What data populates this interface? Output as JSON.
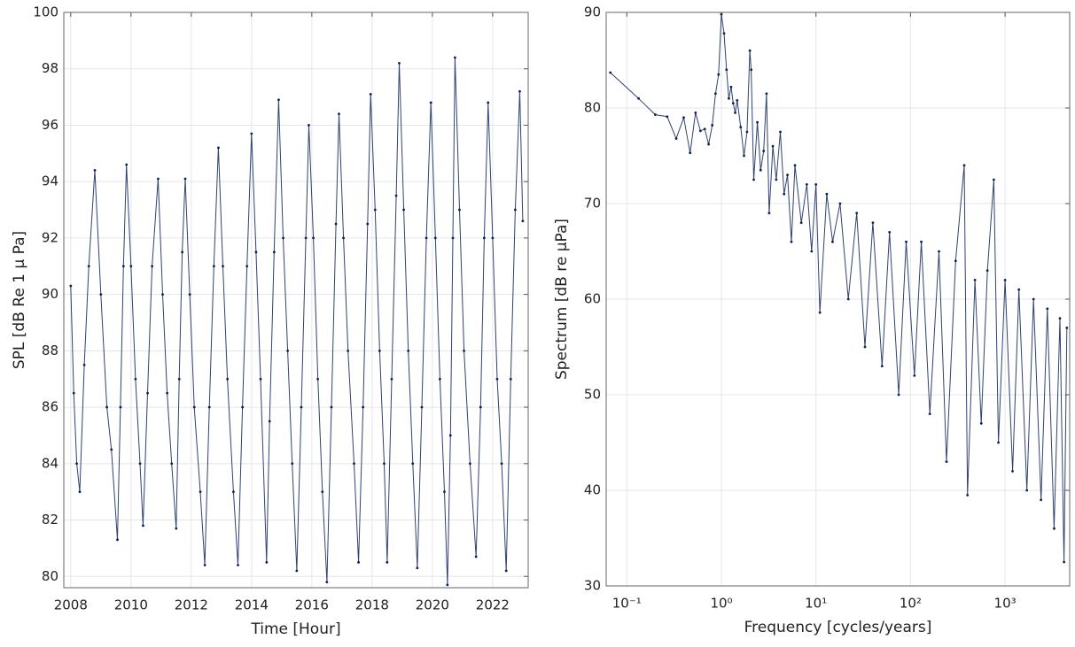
{
  "chart_data": [
    {
      "type": "line",
      "xlabel": "Time [Hour]",
      "ylabel": "SPL [dB Re 1 μ Pa]",
      "color": "#0a2157",
      "grid": true,
      "xlog": false,
      "xlim": [
        2007.77,
        2023.18
      ],
      "ylim": [
        79.6,
        100
      ],
      "xticks": [
        2008,
        2010,
        2012,
        2014,
        2016,
        2018,
        2020,
        2022
      ],
      "yticks": [
        80,
        82,
        84,
        86,
        88,
        90,
        92,
        94,
        96,
        98,
        100
      ],
      "x": [
        2008.0,
        2008.1,
        2008.2,
        2008.3,
        2008.45,
        2008.6,
        2008.8,
        2009.0,
        2009.2,
        2009.35,
        2009.55,
        2009.65,
        2009.75,
        2009.85,
        2010.0,
        2010.15,
        2010.3,
        2010.4,
        2010.55,
        2010.7,
        2010.9,
        2011.05,
        2011.2,
        2011.35,
        2011.5,
        2011.6,
        2011.7,
        2011.8,
        2011.95,
        2012.1,
        2012.3,
        2012.45,
        2012.6,
        2012.75,
        2012.9,
        2013.05,
        2013.2,
        2013.4,
        2013.55,
        2013.7,
        2013.85,
        2014.0,
        2014.15,
        2014.3,
        2014.5,
        2014.6,
        2014.75,
        2014.9,
        2015.05,
        2015.2,
        2015.35,
        2015.5,
        2015.65,
        2015.8,
        2015.9,
        2016.05,
        2016.2,
        2016.35,
        2016.5,
        2016.65,
        2016.8,
        2016.9,
        2017.05,
        2017.2,
        2017.4,
        2017.55,
        2017.7,
        2017.85,
        2017.95,
        2018.1,
        2018.25,
        2018.4,
        2018.5,
        2018.65,
        2018.8,
        2018.9,
        2019.05,
        2019.2,
        2019.35,
        2019.5,
        2019.65,
        2019.8,
        2019.95,
        2020.1,
        2020.25,
        2020.4,
        2020.5,
        2020.6,
        2020.68,
        2020.75,
        2020.9,
        2021.05,
        2021.25,
        2021.45,
        2021.6,
        2021.72,
        2021.85,
        2022.0,
        2022.15,
        2022.3,
        2022.45,
        2022.6,
        2022.75,
        2022.9,
        2023.0
      ],
      "values": [
        90.3,
        86.5,
        84.0,
        83.0,
        87.5,
        91.0,
        94.4,
        90.0,
        86.0,
        84.5,
        81.3,
        86.0,
        91.0,
        94.6,
        91.0,
        87.0,
        84.0,
        81.8,
        86.5,
        91.0,
        94.1,
        90.0,
        86.5,
        84.0,
        81.7,
        87.0,
        91.5,
        94.1,
        90.0,
        86.0,
        83.0,
        80.4,
        86.0,
        91.0,
        95.2,
        91.0,
        87.0,
        83.0,
        80.4,
        86.0,
        91.0,
        95.7,
        91.5,
        87.0,
        80.5,
        85.5,
        91.5,
        96.9,
        92.0,
        88.0,
        84.0,
        80.2,
        86.0,
        92.0,
        96.0,
        92.0,
        87.0,
        83.0,
        79.8,
        86.0,
        92.5,
        96.4,
        92.0,
        88.0,
        84.0,
        80.5,
        86.0,
        92.5,
        97.1,
        93.0,
        88.0,
        84.0,
        80.5,
        87.0,
        93.5,
        98.2,
        93.0,
        88.0,
        84.0,
        80.3,
        86.0,
        92.0,
        96.8,
        92.0,
        87.0,
        83.0,
        79.7,
        85.0,
        92.0,
        98.4,
        93.0,
        88.0,
        84.0,
        80.7,
        86.0,
        92.0,
        96.8,
        92.0,
        87.0,
        84.0,
        80.2,
        87.0,
        93.0,
        97.2,
        92.6
      ]
    },
    {
      "type": "line",
      "xlabel": "Frequency [cycles/years]",
      "ylabel": "Spectrum [dB re μPa]",
      "color": "#0a2157",
      "grid": true,
      "xlog": true,
      "xlim": [
        0.0605,
        4820
      ],
      "ylim": [
        30,
        90
      ],
      "xticks": [
        {
          "value": 0.1,
          "label": "10⁻¹"
        },
        {
          "value": 1,
          "label": "10⁰"
        },
        {
          "value": 10,
          "label": "10¹"
        },
        {
          "value": 100,
          "label": "10²"
        },
        {
          "value": 1000,
          "label": "10³"
        }
      ],
      "yticks": [
        30,
        40,
        50,
        60,
        70,
        80,
        90
      ],
      "x": [
        0.067,
        0.133,
        0.2,
        0.267,
        0.333,
        0.4,
        0.467,
        0.533,
        0.6,
        0.667,
        0.733,
        0.8,
        0.867,
        0.933,
        1.0,
        1.067,
        1.133,
        1.2,
        1.267,
        1.333,
        1.4,
        1.467,
        1.6,
        1.733,
        1.867,
        2.0,
        2.067,
        2.2,
        2.4,
        2.6,
        2.8,
        3.0,
        3.2,
        3.5,
        3.8,
        4.2,
        4.6,
        5.0,
        5.5,
        6,
        7,
        8,
        9,
        10,
        11,
        13,
        15,
        18,
        22,
        27,
        33,
        40,
        50,
        60,
        75,
        90,
        110,
        130,
        160,
        200,
        240,
        300,
        370,
        400,
        480,
        560,
        650,
        760,
        850,
        1000,
        1200,
        1400,
        1700,
        2000,
        2400,
        2800,
        3300,
        3800,
        4200,
        4500
      ],
      "values": [
        83.7,
        81,
        79.3,
        79.1,
        76.8,
        79,
        75.3,
        79.5,
        77.6,
        77.8,
        76.2,
        78.2,
        81.5,
        83.5,
        89.8,
        87.8,
        84,
        81,
        82.2,
        80.5,
        79.5,
        80.8,
        78,
        75,
        77.5,
        86,
        84,
        72.5,
        78.5,
        73.5,
        75.5,
        81.5,
        69,
        76,
        72.5,
        77.5,
        71,
        73,
        66,
        74,
        68,
        72,
        65,
        72,
        58.6,
        71,
        66,
        70,
        60,
        69,
        55,
        68,
        53,
        67,
        50,
        66,
        52,
        66,
        48,
        65,
        43,
        64,
        74,
        39.5,
        62,
        47,
        63,
        72.5,
        45,
        62,
        42,
        61,
        40,
        60,
        39,
        59,
        36,
        58,
        32.5,
        57
      ]
    }
  ]
}
